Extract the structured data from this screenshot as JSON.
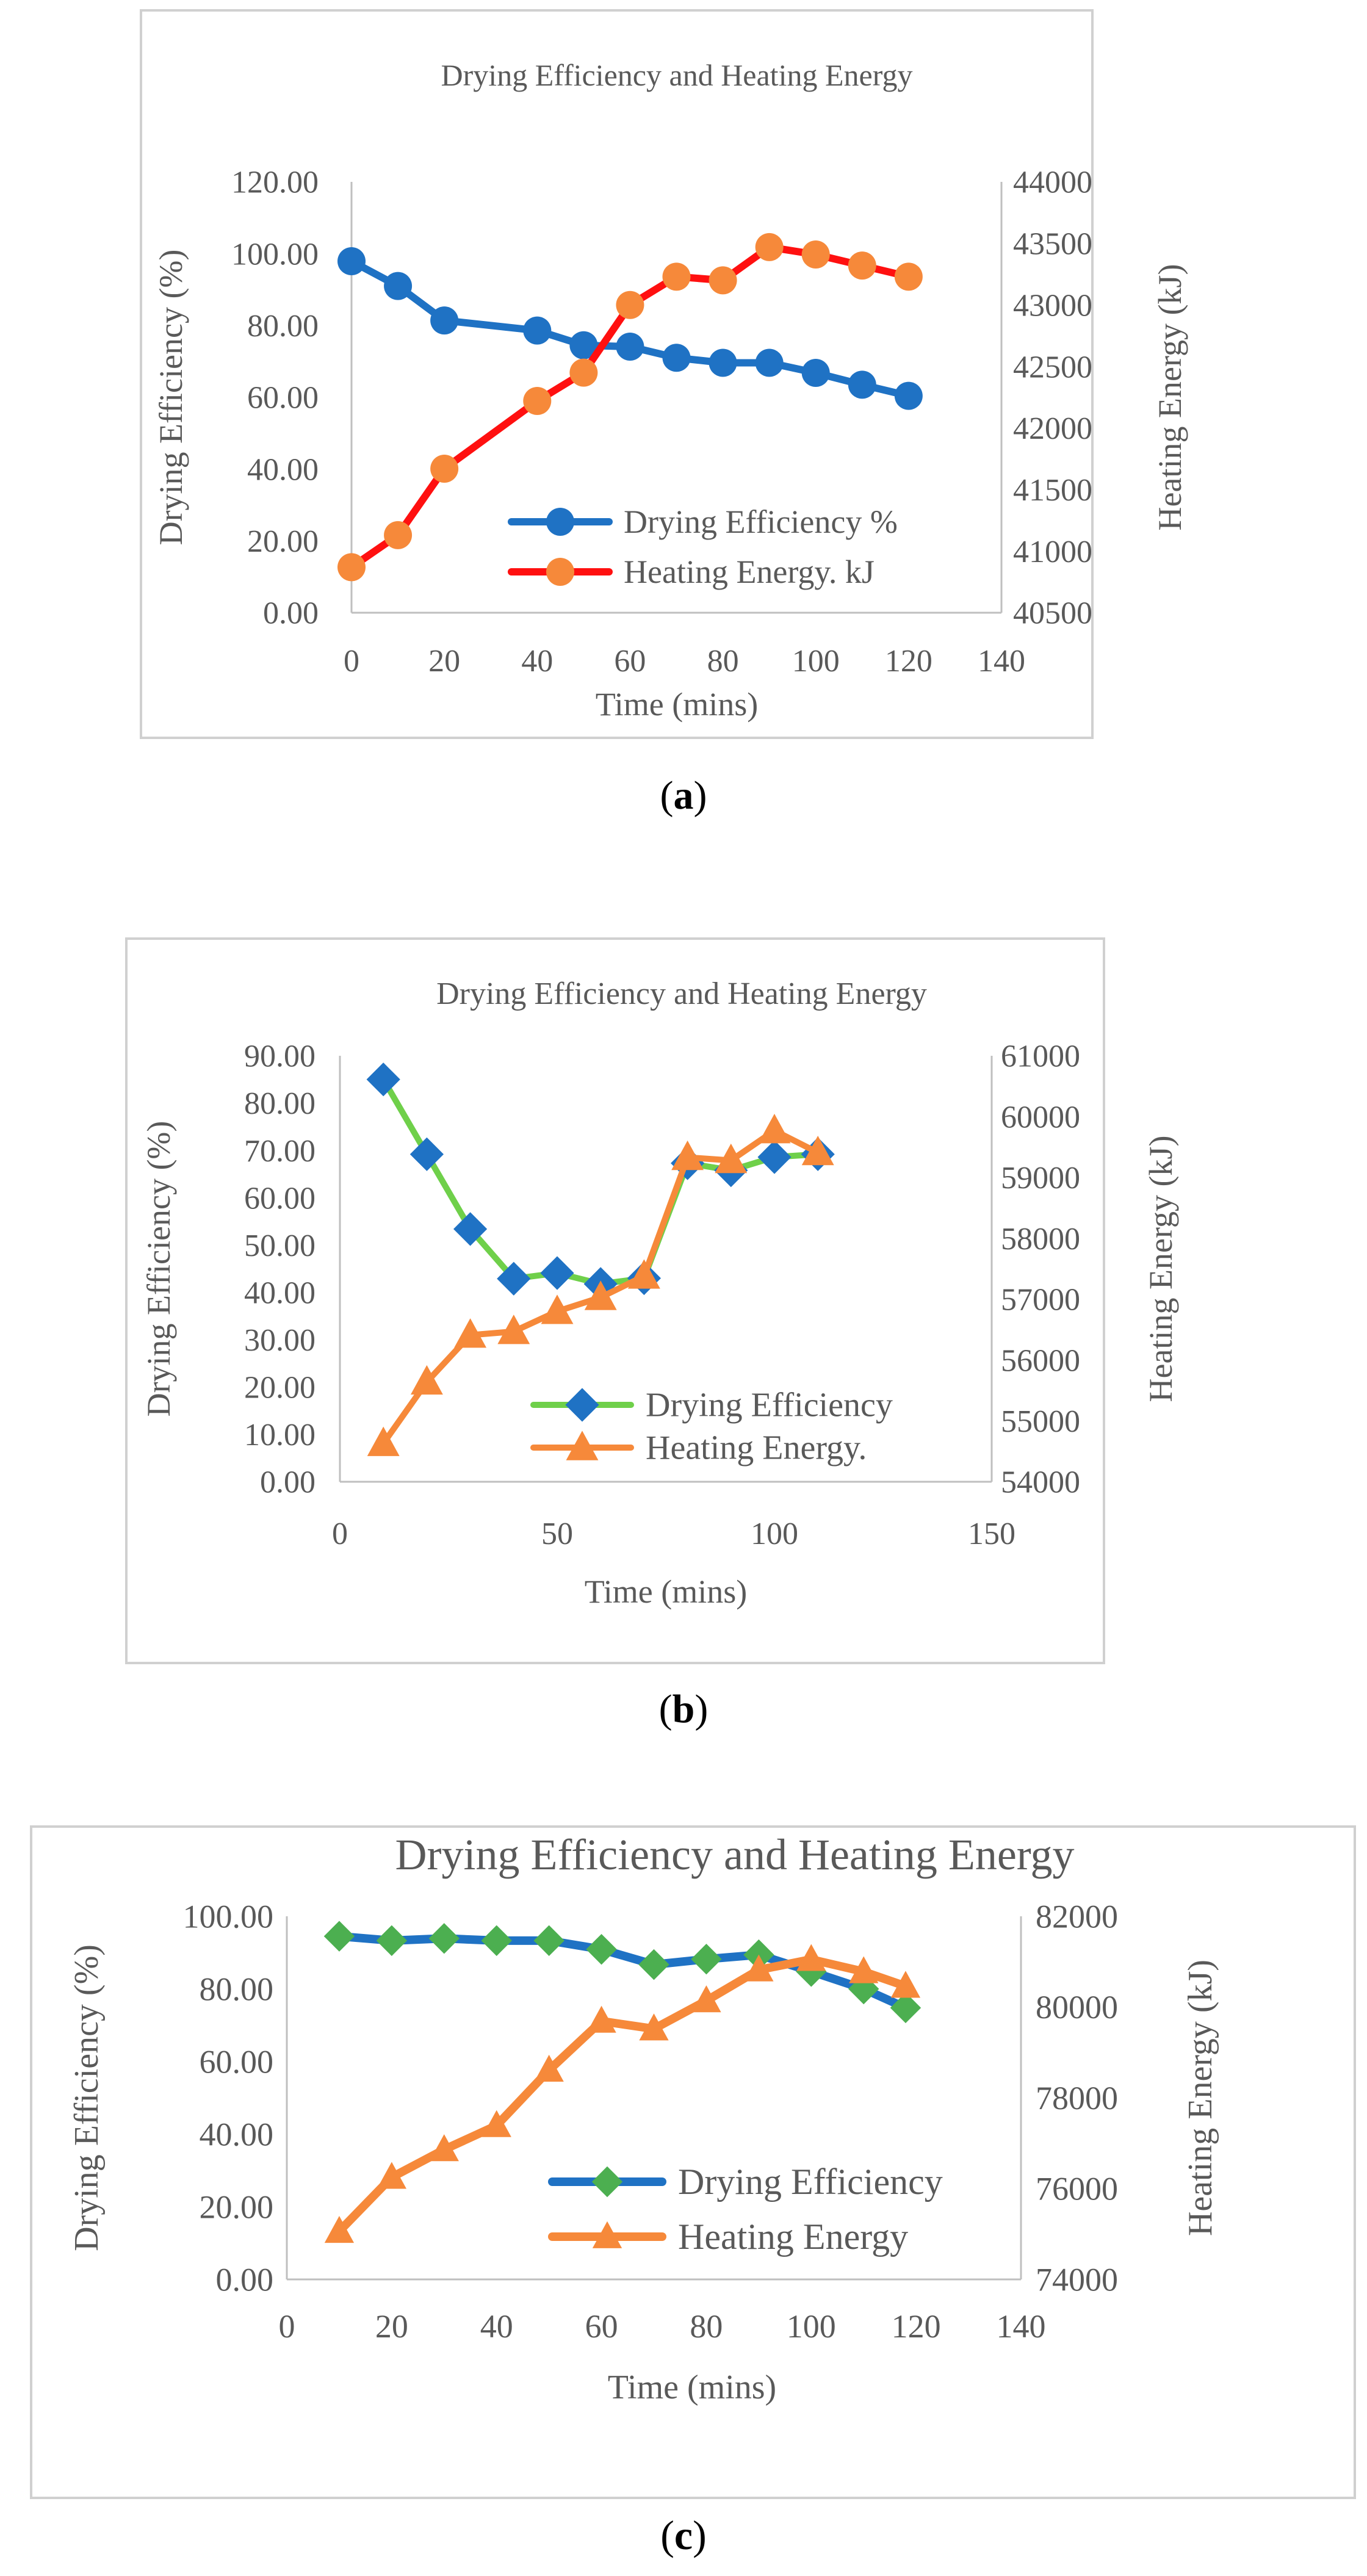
{
  "chart_data": [
    {
      "type": "line",
      "panel_label": "(a)",
      "panel_letter": "a",
      "title": "Drying Efficiency and Heating Energy",
      "xlabel": "Time (mins)",
      "ylabel": "Drying Efficiency (%)",
      "y2label": "Heating Energy (kJ)",
      "xlim": [
        0,
        140
      ],
      "xticks": [
        "0",
        "20",
        "40",
        "60",
        "80",
        "100",
        "120",
        "140"
      ],
      "xtick_values": [
        0,
        20,
        40,
        60,
        80,
        100,
        120,
        140
      ],
      "ylim": [
        0,
        120
      ],
      "yticks": [
        "0.00",
        "20.00",
        "40.00",
        "60.00",
        "80.00",
        "100.00",
        "120.00"
      ],
      "ytick_values": [
        0,
        20,
        40,
        60,
        80,
        100,
        120
      ],
      "y2lim": [
        40500,
        44000
      ],
      "y2ticks": [
        "40500",
        "41000",
        "41500",
        "42000",
        "42500",
        "43000",
        "43500",
        "44000"
      ],
      "y2tick_values": [
        40500,
        41000,
        41500,
        42000,
        42500,
        43000,
        43500,
        44000
      ],
      "legend_position": "lower-right",
      "series": [
        {
          "name": "Drying Efficiency %",
          "axis": "left",
          "line_color": "#1f72c4",
          "marker_color": "#1f72c4",
          "marker": "circle",
          "x": [
            0,
            10,
            20,
            40,
            50,
            60,
            70,
            80,
            90,
            100,
            110,
            120
          ],
          "values": [
            97.9,
            91.0,
            81.4,
            78.6,
            74.5,
            74.1,
            71.0,
            69.6,
            69.6,
            66.8,
            63.5,
            60.4
          ]
        },
        {
          "name": "Heating Energy. kJ",
          "axis": "right",
          "line_color": "#ff1010",
          "marker_color": "#f6893a",
          "marker": "circle",
          "x": [
            0,
            10,
            20,
            40,
            50,
            60,
            70,
            80,
            90,
            100,
            110,
            120
          ],
          "values": [
            40870,
            41130,
            41670,
            42220,
            42450,
            43000,
            43230,
            43200,
            43470,
            43410,
            43320,
            43230
          ]
        }
      ]
    },
    {
      "type": "line",
      "panel_label": "(b)",
      "panel_letter": "b",
      "title": "Drying Efficiency and Heating Energy",
      "xlabel": "Time (mins)",
      "ylabel": "Drying Efficiency (%)",
      "y2label": "Heating Energy (kJ)",
      "xlim": [
        0,
        150
      ],
      "xticks": [
        "0",
        "50",
        "100",
        "150"
      ],
      "xtick_values": [
        0,
        50,
        100,
        150
      ],
      "ylim": [
        0,
        90
      ],
      "yticks": [
        "0.00",
        "10.00",
        "20.00",
        "30.00",
        "40.00",
        "50.00",
        "60.00",
        "70.00",
        "80.00",
        "90.00"
      ],
      "ytick_values": [
        0,
        10,
        20,
        30,
        40,
        50,
        60,
        70,
        80,
        90
      ],
      "y2lim": [
        54000,
        61000
      ],
      "y2ticks": [
        "54000",
        "55000",
        "56000",
        "57000",
        "58000",
        "59000",
        "60000",
        "61000"
      ],
      "y2tick_values": [
        54000,
        55000,
        56000,
        57000,
        58000,
        59000,
        60000,
        61000
      ],
      "legend_position": "lower-right",
      "series": [
        {
          "name": "Drying Efficiency",
          "axis": "left",
          "line_color": "#6fd04a",
          "marker_color": "#1f72c4",
          "marker": "diamond",
          "x": [
            10,
            20,
            30,
            40,
            50,
            60,
            70,
            80,
            90,
            100,
            110
          ],
          "values": [
            85.0,
            69.2,
            53.4,
            42.9,
            44.1,
            41.8,
            43.0,
            67.3,
            65.8,
            68.6,
            69.2
          ]
        },
        {
          "name": "Heating Energy.",
          "axis": "right",
          "line_color": "#f6893a",
          "marker_color": "#f6893a",
          "marker": "triangle",
          "x": [
            10,
            20,
            30,
            40,
            50,
            60,
            70,
            80,
            90,
            100,
            110
          ],
          "values": [
            54630,
            55640,
            56410,
            56470,
            56800,
            57030,
            57380,
            59330,
            59280,
            59770,
            59410
          ]
        }
      ]
    },
    {
      "type": "line",
      "panel_label": "(c)",
      "panel_letter": "c",
      "title": "Drying  Efficiency and Heating Energy",
      "xlabel": "Time (mins)",
      "ylabel": "Drying Efficiency (%)",
      "y2label": "Heating Energy (kJ)",
      "xlim": [
        0,
        140
      ],
      "xticks": [
        "0",
        "20",
        "40",
        "60",
        "80",
        "100",
        "120",
        "140"
      ],
      "xtick_values": [
        0,
        20,
        40,
        60,
        80,
        100,
        120,
        140
      ],
      "ylim": [
        0,
        100
      ],
      "yticks": [
        "0.00",
        "20.00",
        "40.00",
        "60.00",
        "80.00",
        "100.00"
      ],
      "ytick_values": [
        0,
        20,
        40,
        60,
        80,
        100
      ],
      "y2lim": [
        74000,
        82000
      ],
      "y2ticks": [
        "74000",
        "76000",
        "78000",
        "80000",
        "82000"
      ],
      "y2tick_values": [
        74000,
        76000,
        78000,
        80000,
        82000
      ],
      "legend_position": "lower-right",
      "series": [
        {
          "name": "Drying Efficiency",
          "axis": "left",
          "line_color": "#1f72c4",
          "marker_color": "#4caf50",
          "marker": "diamond",
          "x": [
            10,
            20,
            30,
            40,
            50,
            60,
            70,
            80,
            90,
            100,
            110,
            118
          ],
          "values": [
            94.5,
            93.3,
            93.9,
            93.3,
            93.3,
            90.9,
            86.7,
            88.2,
            89.4,
            84.8,
            80.0,
            74.8
          ]
        },
        {
          "name": "Heating Energy",
          "axis": "right",
          "line_color": "#f6893a",
          "marker_color": "#f6893a",
          "marker": "triangle",
          "x": [
            10,
            20,
            30,
            40,
            50,
            60,
            70,
            80,
            90,
            100,
            110,
            118
          ],
          "values": [
            75060,
            76250,
            76860,
            77390,
            78610,
            79690,
            79520,
            80140,
            80820,
            81050,
            80780,
            80460
          ]
        }
      ]
    }
  ]
}
